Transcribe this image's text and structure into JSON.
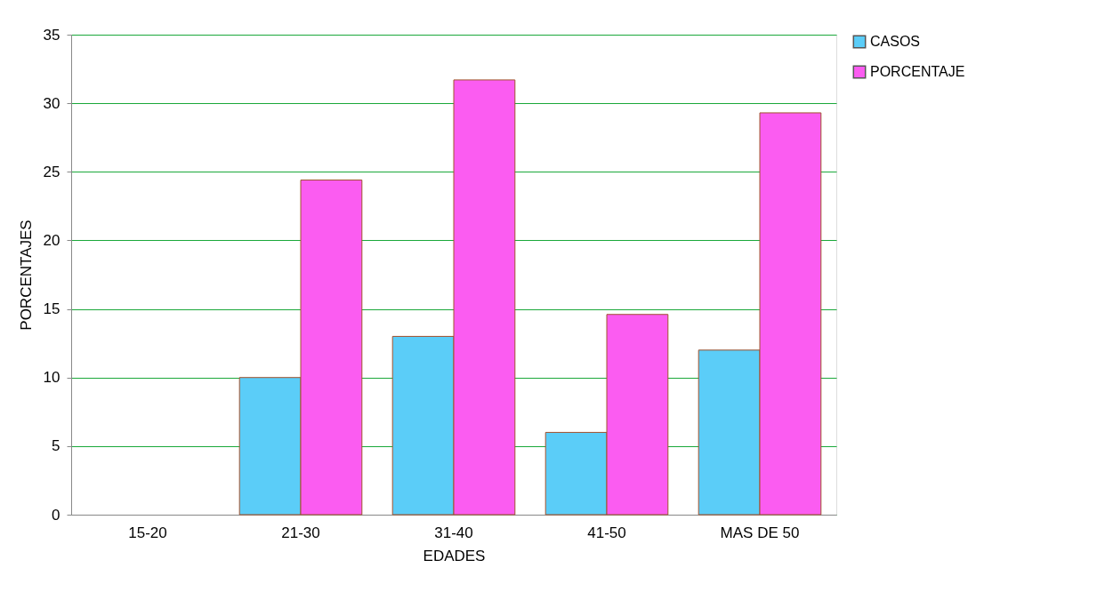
{
  "chart_data": {
    "type": "bar",
    "xlabel": "EDADES",
    "ylabel": "PORCENTAJES",
    "categories": [
      "15-20",
      "21-30",
      "31-40",
      "41-50",
      "MAS DE 50"
    ],
    "series": [
      {
        "name": "CASOS",
        "color": "#5bcdf8",
        "values": [
          null,
          10,
          13,
          6,
          12
        ]
      },
      {
        "name": "PORCENTAJE",
        "color": "#fb5cf1",
        "values": [
          null,
          24.4,
          31.7,
          14.6,
          29.3
        ]
      }
    ],
    "ylim": [
      0,
      35
    ],
    "yticks": [
      0,
      5,
      10,
      15,
      20,
      25,
      30,
      35
    ],
    "grid": "y",
    "legend": "right"
  }
}
